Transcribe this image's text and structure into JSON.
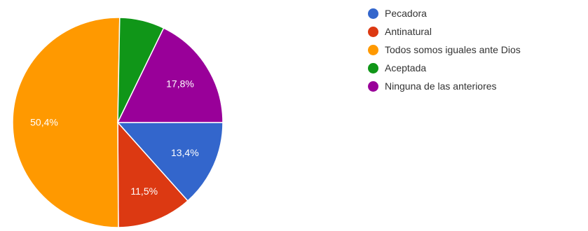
{
  "chart_data": {
    "type": "pie",
    "slices": [
      {
        "name": "Pecadora",
        "value": 13.4,
        "label": "13,4%",
        "color": "#3366cc"
      },
      {
        "name": "Antinatural",
        "value": 11.5,
        "label": "11,5%",
        "color": "#dc3912"
      },
      {
        "name": "Todos somos iguales ante Dios",
        "value": 50.4,
        "label": "50,4%",
        "color": "#ff9900"
      },
      {
        "name": "Aceptada",
        "value": 6.9,
        "label": "",
        "color": "#109618"
      },
      {
        "name": "Ninguna de las anteriores",
        "value": 17.8,
        "label": "17,8%",
        "color": "#990099"
      }
    ],
    "start_angle": "3 o'clock, clockwise",
    "legend_position": "right"
  }
}
